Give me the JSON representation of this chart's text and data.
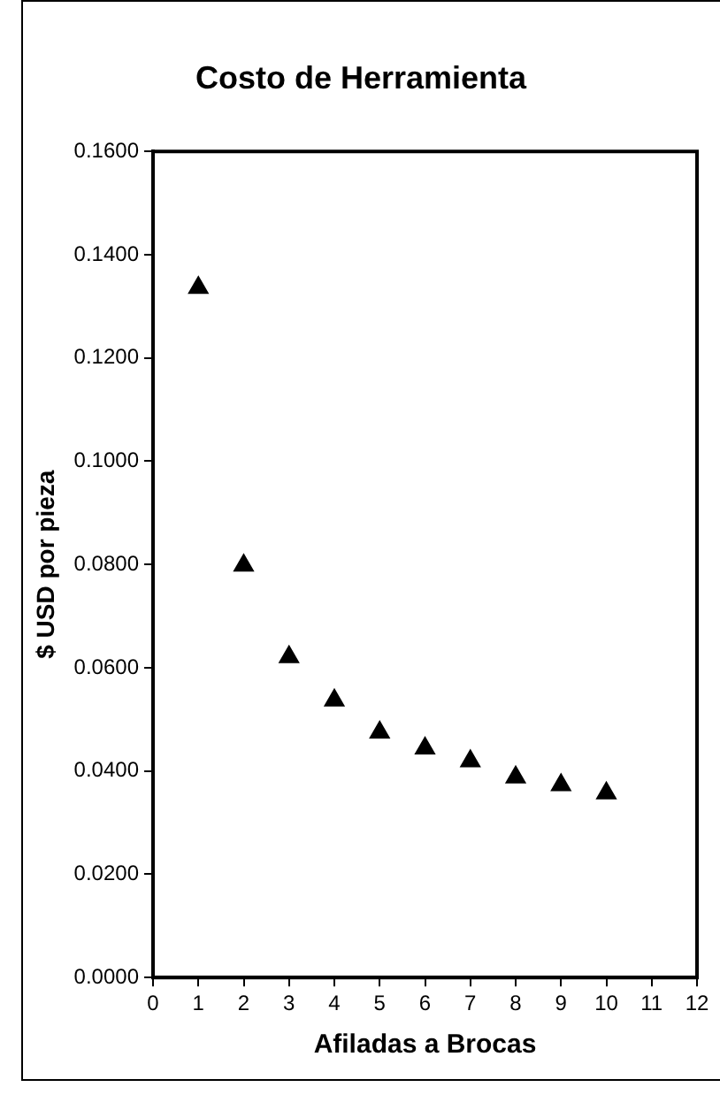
{
  "chart_data": {
    "type": "scatter",
    "title": "Costo de Herramienta",
    "xlabel": "Afiladas a Brocas",
    "ylabel": "$ USD por pieza",
    "x": [
      1,
      2,
      3,
      4,
      5,
      6,
      7,
      8,
      9,
      10
    ],
    "series": [
      {
        "color": "#000000",
        "values": [
          0.1336,
          0.0798,
          0.0621,
          0.0537,
          0.0475,
          0.0444,
          0.0419,
          0.0388,
          0.0373,
          0.0357
        ]
      }
    ],
    "xlim": [
      0,
      12
    ],
    "xticks": [
      0,
      1,
      2,
      3,
      4,
      5,
      6,
      7,
      8,
      9,
      10,
      11,
      12
    ],
    "ylim": [
      0,
      0.16
    ],
    "yticks": [
      {
        "value": 0,
        "label": "0.0000"
      },
      {
        "value": 0.02,
        "label": "0.0200"
      },
      {
        "value": 0.04,
        "label": "0.0400"
      },
      {
        "value": 0.06,
        "label": "0.0600"
      },
      {
        "value": 0.08,
        "label": "0.0800"
      },
      {
        "value": 0.1,
        "label": "0.1000"
      },
      {
        "value": 0.12,
        "label": "0.1200"
      },
      {
        "value": 0.14,
        "label": "0.1400"
      },
      {
        "value": 0.16,
        "label": "0.1600"
      }
    ],
    "marker": "triangle",
    "grid": false,
    "legend": false
  }
}
